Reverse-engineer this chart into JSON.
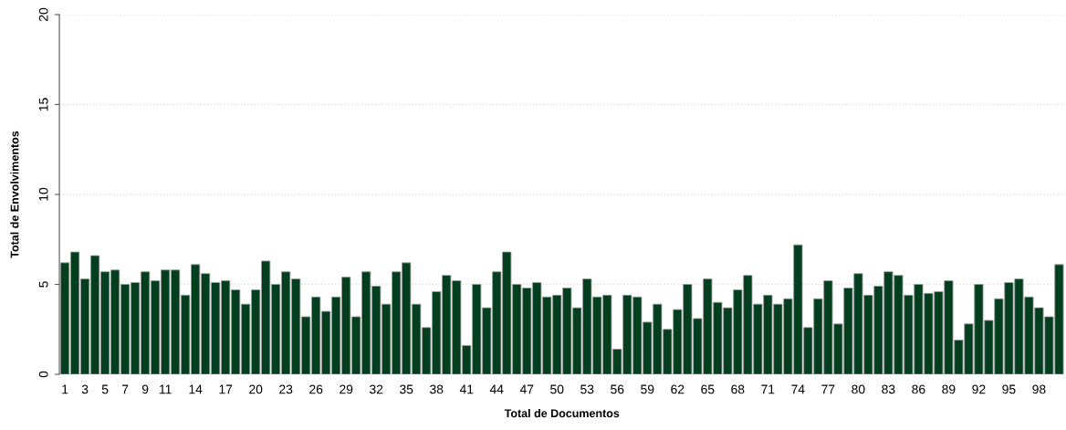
{
  "chart_data": {
    "type": "bar",
    "xlabel": "Total de Documentos",
    "ylabel": "Total de Envolvimentos",
    "categories": [
      "1",
      null,
      "3",
      null,
      "5",
      null,
      "7",
      null,
      "9",
      null,
      "11",
      null,
      null,
      "14",
      null,
      null,
      "17",
      null,
      null,
      "20",
      null,
      null,
      "23",
      null,
      null,
      "26",
      null,
      null,
      "29",
      null,
      null,
      "32",
      null,
      null,
      "35",
      null,
      null,
      "38",
      null,
      null,
      "41",
      null,
      null,
      "44",
      null,
      null,
      "47",
      null,
      null,
      "50",
      null,
      null,
      "53",
      null,
      null,
      "56",
      null,
      null,
      "59",
      null,
      null,
      "62",
      null,
      null,
      "65",
      null,
      null,
      "68",
      null,
      null,
      "71",
      null,
      null,
      "74",
      null,
      null,
      "77",
      null,
      null,
      "80",
      null,
      null,
      "83",
      null,
      null,
      "86",
      null,
      null,
      "89",
      null,
      null,
      "92",
      null,
      null,
      "95",
      null,
      null,
      "98",
      null,
      null
    ],
    "values": [
      6.2,
      6.8,
      5.3,
      6.6,
      5.7,
      5.8,
      5.0,
      5.1,
      5.7,
      5.2,
      5.8,
      5.8,
      4.4,
      6.1,
      5.6,
      5.1,
      5.2,
      4.7,
      3.9,
      4.7,
      6.3,
      5.0,
      5.7,
      5.3,
      3.2,
      4.3,
      3.5,
      4.3,
      5.4,
      3.2,
      5.7,
      4.9,
      3.9,
      5.7,
      6.2,
      3.9,
      2.6,
      4.6,
      5.5,
      5.2,
      1.6,
      5.0,
      3.7,
      5.7,
      6.8,
      5.0,
      4.8,
      5.1,
      4.3,
      4.4,
      4.8,
      3.7,
      5.3,
      4.3,
      4.4,
      1.4,
      4.4,
      4.3,
      2.9,
      3.9,
      2.5,
      3.6,
      5.0,
      3.1,
      5.3,
      4.0,
      3.7,
      4.7,
      5.5,
      3.9,
      4.4,
      3.9,
      4.2,
      7.2,
      2.6,
      4.2,
      5.2,
      2.8,
      4.8,
      5.6,
      4.4,
      4.9,
      5.7,
      5.5,
      4.4,
      5.0,
      4.5,
      4.6,
      5.2,
      1.9,
      2.8,
      5.0,
      3.0,
      4.2,
      5.1,
      5.3,
      4.3,
      3.7,
      3.2,
      6.1
    ],
    "color": "#033f1f",
    "ylim": [
      0,
      20
    ],
    "yticks": [
      0,
      5,
      10,
      15,
      20
    ],
    "grid": "y"
  }
}
